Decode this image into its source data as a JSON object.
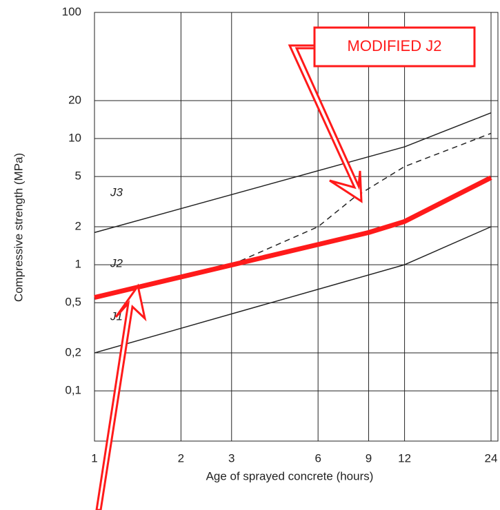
{
  "chart_data": {
    "type": "line",
    "xlabel": "Age of sprayed concrete (hours)",
    "ylabel": "Compressive strength (MPa)",
    "xscale": "log",
    "yscale": "log",
    "xlim": [
      1,
      24
    ],
    "ylim": [
      0.04,
      100
    ],
    "xticks": [
      1,
      2,
      3,
      6,
      9,
      12,
      24
    ],
    "yticks": [
      {
        "value": 0.1,
        "label": "0,1"
      },
      {
        "value": 0.2,
        "label": "0,2"
      },
      {
        "value": 0.5,
        "label": "0,5"
      },
      1,
      2,
      5,
      10,
      20,
      100
    ],
    "grid": true,
    "series": [
      {
        "name": "J3",
        "color": "#222222",
        "style": "solid",
        "width": 1.5,
        "x": [
          1,
          12,
          24
        ],
        "values": [
          1.8,
          8.6,
          16
        ]
      },
      {
        "name": "J2",
        "color": "#222222",
        "style": "dashed",
        "width": 1.5,
        "x": [
          3,
          6,
          8,
          12,
          24
        ],
        "values": [
          1,
          2,
          3.4,
          6,
          11
        ]
      },
      {
        "name": "J1",
        "color": "#222222",
        "style": "solid",
        "width": 1.5,
        "x": [
          1,
          12,
          24
        ],
        "values": [
          0.2,
          1,
          2
        ]
      },
      {
        "name": "MODIFIED J2",
        "color": "#ff1a1a",
        "style": "solid",
        "width": 7,
        "x": [
          1,
          9,
          12,
          24
        ],
        "values": [
          0.55,
          1.8,
          2.2,
          4.9
        ]
      }
    ]
  }
}
